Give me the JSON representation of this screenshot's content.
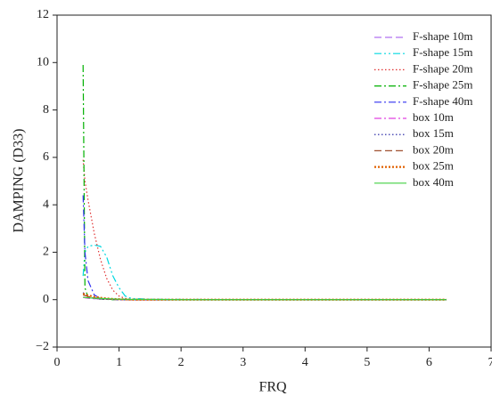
{
  "chart_data": {
    "type": "line",
    "xlabel": "FRQ",
    "ylabel": "DAMPING (D33)",
    "xlim": [
      0,
      7
    ],
    "ylim": [
      -2,
      12
    ],
    "xticks": [
      0,
      1,
      2,
      3,
      4,
      5,
      6,
      7
    ],
    "yticks": [
      {
        "value": -2,
        "label": "−2"
      },
      0,
      2,
      4,
      6,
      8,
      10,
      12
    ],
    "grid": false,
    "legend": "upper right",
    "x": [
      0.42,
      0.45,
      0.5,
      0.6,
      0.7,
      0.8,
      0.9,
      1.0,
      1.1,
      1.2,
      1.5,
      2,
      3,
      4,
      5,
      6,
      6.28
    ],
    "series": [
      {
        "name": "F-shape 10m",
        "color": "#b070f0",
        "style": "dash",
        "values": [
          0.1,
          0.08,
          0.06,
          0.04,
          0.03,
          0.02,
          0.01,
          0.01,
          0,
          0,
          0,
          0,
          0,
          0,
          0,
          0,
          0
        ]
      },
      {
        "name": "F-shape 15m",
        "color": "#00d8e0",
        "style": "dashdotdot",
        "values": [
          1.0,
          2.0,
          2.25,
          2.3,
          2.25,
          1.8,
          1.0,
          0.5,
          0.15,
          0.05,
          0.02,
          0.01,
          0,
          0,
          0,
          0,
          0
        ]
      },
      {
        "name": "F-shape 20m",
        "color": "#e03030",
        "style": "dot",
        "values": [
          5.9,
          5.0,
          4.2,
          2.8,
          1.7,
          0.9,
          0.4,
          0.15,
          0.05,
          0.02,
          0.01,
          0,
          0,
          0,
          0,
          0,
          0
        ]
      },
      {
        "name": "F-shape 25m",
        "color": "#00b000",
        "style": "dashdot",
        "values": [
          9.9,
          0.5,
          0.1,
          0.05,
          0.02,
          0.01,
          0,
          0,
          0,
          0,
          0,
          0,
          0,
          0,
          0,
          0,
          0
        ]
      },
      {
        "name": "F-shape 40m",
        "color": "#3030f0",
        "style": "dashdot",
        "values": [
          4.4,
          2.0,
          0.8,
          0.2,
          0.05,
          0.02,
          0.01,
          0,
          0,
          0,
          0,
          0,
          0,
          0,
          0,
          0,
          0
        ]
      },
      {
        "name": "box 10m",
        "color": "#e040e0",
        "style": "dashdot",
        "values": [
          0.1,
          0.08,
          0.06,
          0.04,
          0.03,
          0.02,
          0.01,
          0,
          0,
          0,
          0,
          0,
          0,
          0,
          0,
          0,
          0
        ]
      },
      {
        "name": "box 15m",
        "color": "#1a1aa0",
        "style": "dot",
        "values": [
          0.3,
          0.2,
          0.12,
          0.06,
          0.03,
          0.02,
          0.01,
          0,
          0,
          0,
          0,
          0,
          0,
          0,
          0,
          0,
          0
        ]
      },
      {
        "name": "box 20m",
        "color": "#a05030",
        "style": "dash",
        "values": [
          0.2,
          0.17,
          0.13,
          0.08,
          0.05,
          0.03,
          0.02,
          0.01,
          0,
          0,
          0,
          0,
          0,
          0,
          0,
          0,
          0
        ]
      },
      {
        "name": "box 25m",
        "color": "#e06000",
        "style": "thickdot",
        "values": [
          0.25,
          0.22,
          0.18,
          0.12,
          0.08,
          0.05,
          0.03,
          0.02,
          0.01,
          0,
          0,
          0,
          0,
          0,
          0,
          0,
          0
        ]
      },
      {
        "name": "box 40m",
        "color": "#40d040",
        "style": "solid",
        "values": [
          0.1,
          0.09,
          0.08,
          0.06,
          0.05,
          0.04,
          0.03,
          0.02,
          0.02,
          0.01,
          0.01,
          0,
          0,
          0,
          0,
          0,
          0
        ]
      }
    ]
  }
}
